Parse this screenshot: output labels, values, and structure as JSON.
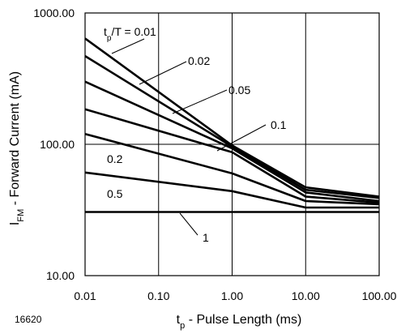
{
  "chart_data": {
    "type": "line",
    "xscale": "log",
    "yscale": "log",
    "xlim": [
      0.01,
      100
    ],
    "ylim": [
      10,
      1000
    ],
    "grid": true,
    "xticks": [
      "0.01",
      "0.10",
      "1.00",
      "10.00",
      "100.00"
    ],
    "yticks": [
      "10.00",
      "100.00",
      "1000.00"
    ],
    "xlabel_main": "t",
    "xlabel_sub": "p",
    "xlabel_rest": " - Pulse Length (ms)",
    "ylabel_main": "I",
    "ylabel_sub": "FM",
    "ylabel_rest": " - Forward Current (mA)",
    "figure_id": "16620",
    "series": [
      {
        "name": "tp/T = 0.01",
        "x": [
          0.01,
          1,
          10,
          100
        ],
        "y": [
          640,
          98,
          47,
          40
        ]
      },
      {
        "name": "0.02",
        "x": [
          0.01,
          1,
          10,
          100
        ],
        "y": [
          470,
          96,
          45,
          39
        ]
      },
      {
        "name": "0.05",
        "x": [
          0.01,
          1,
          10,
          100
        ],
        "y": [
          300,
          93,
          43,
          37
        ]
      },
      {
        "name": "0.1",
        "x": [
          0.01,
          1,
          10,
          100
        ],
        "y": [
          185,
          87,
          40,
          36
        ]
      },
      {
        "name": "0.2",
        "x": [
          0.01,
          1,
          10,
          100
        ],
        "y": [
          120,
          60,
          37,
          35
        ]
      },
      {
        "name": "0.5",
        "x": [
          0.01,
          1,
          10,
          100
        ],
        "y": [
          61,
          44,
          33,
          33
        ]
      },
      {
        "name": "1",
        "x": [
          0.01,
          1,
          10,
          100
        ],
        "y": [
          30.5,
          30.5,
          30.5,
          30.5
        ]
      }
    ],
    "annotations": [
      {
        "label_main": "t",
        "label_sub": "p",
        "label_rest": "/T = 0.01",
        "series": 0
      },
      {
        "label_main": "0.02",
        "label_sub": "",
        "label_rest": "",
        "series": 1
      },
      {
        "label_main": "0.05",
        "label_sub": "",
        "label_rest": "",
        "series": 2
      },
      {
        "label_main": "0.1",
        "label_sub": "",
        "label_rest": "",
        "series": 3
      },
      {
        "label_main": "0.2",
        "label_sub": "",
        "label_rest": "",
        "series": 4
      },
      {
        "label_main": "0.5",
        "label_sub": "",
        "label_rest": "",
        "series": 5
      },
      {
        "label_main": "1",
        "label_sub": "",
        "label_rest": "",
        "series": 6
      }
    ]
  }
}
